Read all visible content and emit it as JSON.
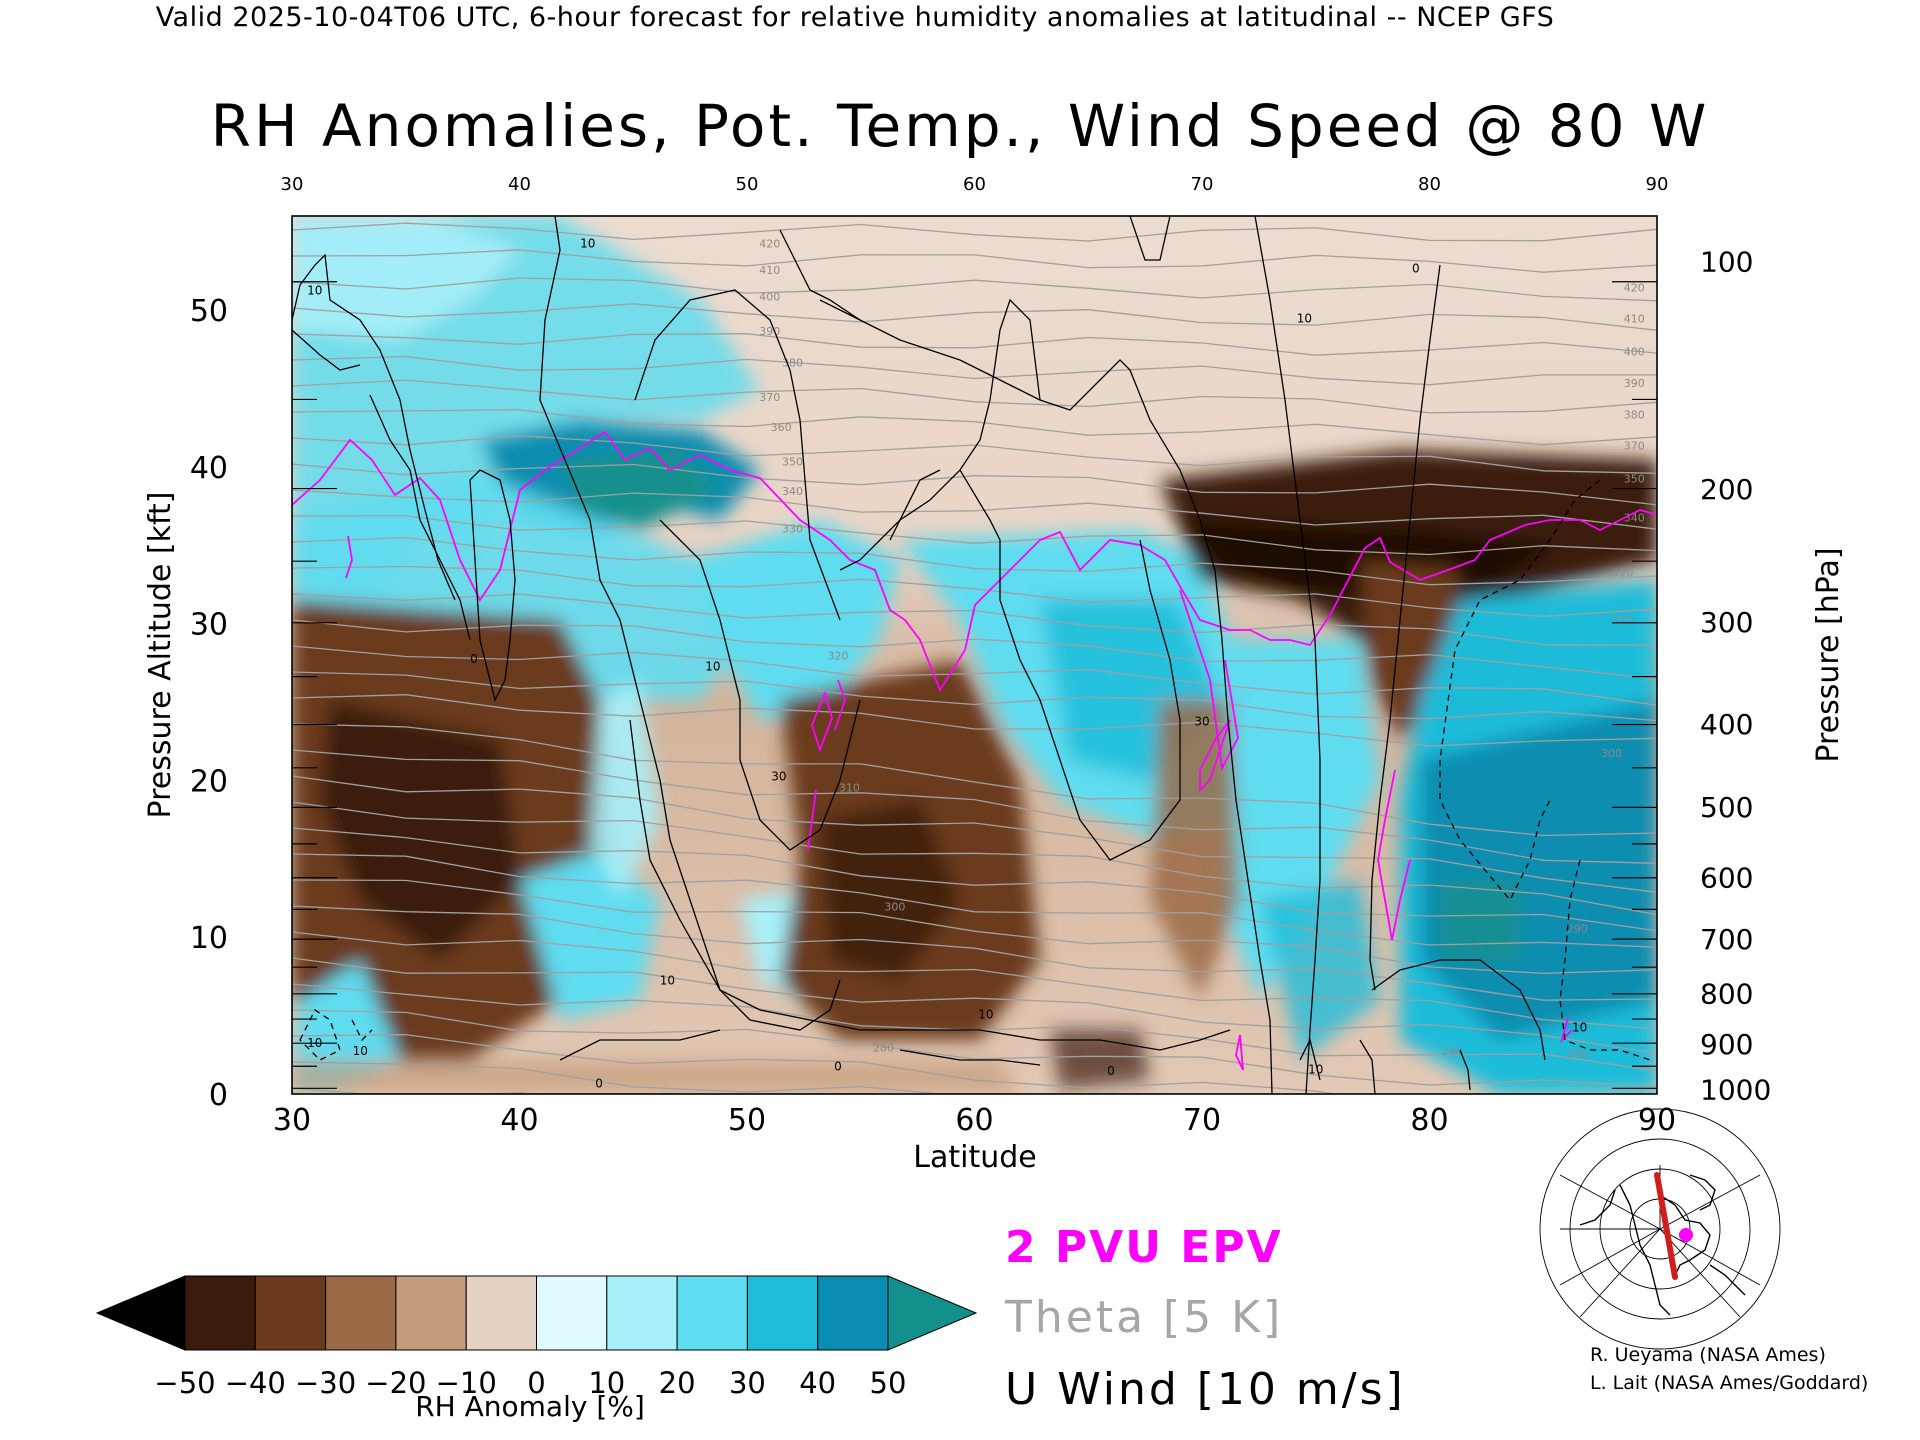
{
  "header": "Valid 2025-10-04T06 UTC, 6-hour forecast for relative humidity anomalies at latitudinal -- NCEP GFS",
  "title": "RH Anomalies, Pot. Temp., Wind Speed @ 80 W",
  "legend": {
    "epv": "2 PVU EPV",
    "theta": "Theta [5 K]",
    "uwind": "U Wind [10 m/s]"
  },
  "credits": [
    "R. Ueyama (NASA Ames)",
    "L. Lait (NASA Ames/Goddard)"
  ],
  "colorbar": {
    "title": "RH Anomaly [%]",
    "ticks": [
      "−50",
      "−40",
      "−30",
      "−20",
      "−10",
      "0",
      "10",
      "20",
      "30",
      "40",
      "50"
    ],
    "colors": [
      "#000000",
      "#3a1c0a",
      "#6b3a1d",
      "#9a6a46",
      "#c49b7b",
      "#e6d2c3",
      "#dffafc",
      "#a7f0fa",
      "#5fdcef",
      "#1fbcd9",
      "#0a8db0",
      "#14908c"
    ]
  },
  "chart_data": {
    "type": "heatmap",
    "xlabel": "Latitude",
    "ylabel": "Pressure Altitude [kft]",
    "y2label": "Pressure [hPa]",
    "xlim": [
      30,
      90
    ],
    "ylim": [
      0,
      56
    ],
    "x_ticks": [
      30,
      40,
      50,
      60,
      70,
      80,
      90
    ],
    "x_top_ticks": [
      30,
      40,
      50,
      60,
      70,
      80,
      90
    ],
    "y_ticks": [
      0,
      10,
      20,
      30,
      40,
      50
    ],
    "pressure_ticks": [
      {
        "hPa": "100",
        "kft": 53.1
      },
      {
        "hPa": "200",
        "kft": 38.6
      },
      {
        "hPa": "300",
        "kft": 30.1
      },
      {
        "hPa": "400",
        "kft": 23.6
      },
      {
        "hPa": "500",
        "kft": 18.3
      },
      {
        "hPa": "600",
        "kft": 13.8
      },
      {
        "hPa": "700",
        "kft": 9.9
      },
      {
        "hPa": "800",
        "kft": 6.4
      },
      {
        "hPa": "900",
        "kft": 3.2
      },
      {
        "hPa": "1000",
        "kft": 0.3
      }
    ],
    "theta_labels": [
      {
        "lat": 51,
        "kft": 54,
        "text": "420"
      },
      {
        "lat": 51,
        "kft": 52.3,
        "text": "410"
      },
      {
        "lat": 51,
        "kft": 50.6,
        "text": "400"
      },
      {
        "lat": 51,
        "kft": 48.4,
        "text": "390"
      },
      {
        "lat": 52,
        "kft": 46.4,
        "text": "380"
      },
      {
        "lat": 51,
        "kft": 44.2,
        "text": "370"
      },
      {
        "lat": 51.5,
        "kft": 42.3,
        "text": "360"
      },
      {
        "lat": 52,
        "kft": 40.1,
        "text": "350"
      },
      {
        "lat": 52,
        "kft": 38.2,
        "text": "340"
      },
      {
        "lat": 52,
        "kft": 35.8,
        "text": "330"
      },
      {
        "lat": 54,
        "kft": 27.7,
        "text": "320"
      },
      {
        "lat": 54.5,
        "kft": 19.3,
        "text": "310"
      },
      {
        "lat": 56.5,
        "kft": 11.7,
        "text": "300"
      },
      {
        "lat": 56,
        "kft": 2.7,
        "text": "280"
      },
      {
        "lat": 89,
        "kft": 51.2,
        "text": "420"
      },
      {
        "lat": 89,
        "kft": 49.2,
        "text": "410"
      },
      {
        "lat": 89,
        "kft": 47.1,
        "text": "400"
      },
      {
        "lat": 89,
        "kft": 45.1,
        "text": "390"
      },
      {
        "lat": 89,
        "kft": 43.1,
        "text": "380"
      },
      {
        "lat": 89,
        "kft": 41.1,
        "text": "370"
      },
      {
        "lat": 89,
        "kft": 39.0,
        "text": "350"
      },
      {
        "lat": 89,
        "kft": 36.5,
        "text": "340"
      },
      {
        "lat": 88.5,
        "kft": 33.0,
        "text": "320"
      },
      {
        "lat": 88.5,
        "kft": 30.0,
        "text": "310"
      },
      {
        "lat": 88,
        "kft": 21.5,
        "text": "300"
      },
      {
        "lat": 86.5,
        "kft": 10.3,
        "text": "290"
      },
      {
        "lat": 86.5,
        "kft": 2.3,
        "text": "280"
      },
      {
        "lat": 81,
        "kft": 2.5,
        "text": "280"
      }
    ],
    "wind_labels": [
      {
        "lat": 31,
        "kft": 51,
        "text": "10"
      },
      {
        "lat": 43,
        "kft": 54,
        "text": "10"
      },
      {
        "lat": 38,
        "kft": 27.5,
        "text": "0"
      },
      {
        "lat": 48.5,
        "kft": 27,
        "text": "10"
      },
      {
        "lat": 51.4,
        "kft": 20,
        "text": "30"
      },
      {
        "lat": 46.5,
        "kft": 7,
        "text": "10"
      },
      {
        "lat": 60.5,
        "kft": 4.8,
        "text": "10"
      },
      {
        "lat": 70,
        "kft": 23.5,
        "text": "30"
      },
      {
        "lat": 74.5,
        "kft": 49.2,
        "text": "10"
      },
      {
        "lat": 79.4,
        "kft": 52.4,
        "text": "0"
      },
      {
        "lat": 86.6,
        "kft": 4,
        "text": "10"
      },
      {
        "lat": 31,
        "kft": 3,
        "text": "10"
      },
      {
        "lat": 33,
        "kft": 2.5,
        "text": "10"
      },
      {
        "lat": 66,
        "kft": 1.2,
        "text": "0"
      },
      {
        "lat": 54,
        "kft": 1.5,
        "text": "0"
      },
      {
        "lat": 75,
        "kft": 1.3,
        "text": "10"
      },
      {
        "lat": 43.5,
        "kft": 0.4,
        "text": "0"
      }
    ]
  }
}
